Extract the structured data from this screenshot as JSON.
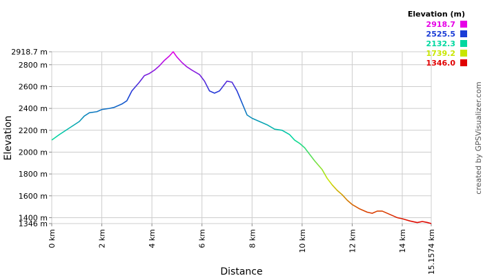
{
  "chart_data": {
    "type": "line",
    "xlabel": "Distance",
    "ylabel": "Elevation",
    "xlim": [
      0,
      15.1574
    ],
    "ylim": [
      1346.0,
      2918.7
    ],
    "x_ticks": [
      0,
      2,
      4,
      6,
      8,
      10,
      12,
      14,
      15.1574
    ],
    "x_tick_labels": [
      "0 km",
      "2 km",
      "4 km",
      "6 km",
      "8 km",
      "10 km",
      "12 km",
      "14 km",
      "15.1574 km"
    ],
    "y_ticks": [
      1346.0,
      1400,
      1600,
      1800,
      2000,
      2200,
      2400,
      2600,
      2800,
      2918.7
    ],
    "y_tick_labels": [
      "1346 m",
      "1400 m",
      "1600 m",
      "1800 m",
      "2000 m",
      "2200 m",
      "2400 m",
      "2600 m",
      "2800 m",
      "2918.7 m"
    ],
    "grid": true,
    "series": [
      {
        "x": [
          0,
          0.3,
          0.5,
          0.7,
          0.9,
          1.1,
          1.3,
          1.5,
          1.8,
          2.0,
          2.3,
          2.5,
          2.8,
          3.0,
          3.2,
          3.5,
          3.7,
          3.9,
          4.1,
          4.3,
          4.5,
          4.7,
          4.85,
          5.0,
          5.2,
          5.4,
          5.6,
          5.9,
          6.1,
          6.3,
          6.5,
          6.7,
          6.9,
          7.0,
          7.2,
          7.4,
          7.6,
          7.8,
          8.0,
          8.3,
          8.6,
          8.9,
          9.2,
          9.5,
          9.7,
          9.9,
          10.1,
          10.3,
          10.5,
          10.8,
          11.0,
          11.2,
          11.4,
          11.6,
          11.8,
          12.0,
          12.3,
          12.6,
          12.8,
          13.0,
          13.2,
          13.5,
          13.8,
          14.0,
          14.3,
          14.6,
          14.8,
          15.0,
          15.1574
        ],
        "y": [
          2110,
          2160,
          2190,
          2220,
          2250,
          2280,
          2330,
          2360,
          2370,
          2390,
          2400,
          2410,
          2440,
          2470,
          2560,
          2640,
          2700,
          2720,
          2750,
          2790,
          2840,
          2880,
          2918.7,
          2870,
          2820,
          2780,
          2750,
          2710,
          2650,
          2560,
          2540,
          2560,
          2620,
          2650,
          2640,
          2560,
          2450,
          2340,
          2310,
          2280,
          2250,
          2210,
          2200,
          2160,
          2110,
          2080,
          2040,
          1980,
          1920,
          1840,
          1760,
          1700,
          1650,
          1610,
          1560,
          1520,
          1480,
          1450,
          1440,
          1460,
          1460,
          1430,
          1400,
          1390,
          1370,
          1355,
          1365,
          1356,
          1346.0
        ]
      }
    ],
    "legend": {
      "title": "Elevation (m)",
      "placement": "top-right",
      "entries": [
        {
          "label": "2918.7",
          "color": "#e600e6"
        },
        {
          "label": "2525.5",
          "color": "#1a3cd6"
        },
        {
          "label": "2132.3",
          "color": "#00d8a0"
        },
        {
          "label": "1739.2",
          "color": "#c8e600"
        },
        {
          "label": "1346.0",
          "color": "#e00000"
        }
      ]
    },
    "credit": "created by GPSVisualizer.com"
  }
}
